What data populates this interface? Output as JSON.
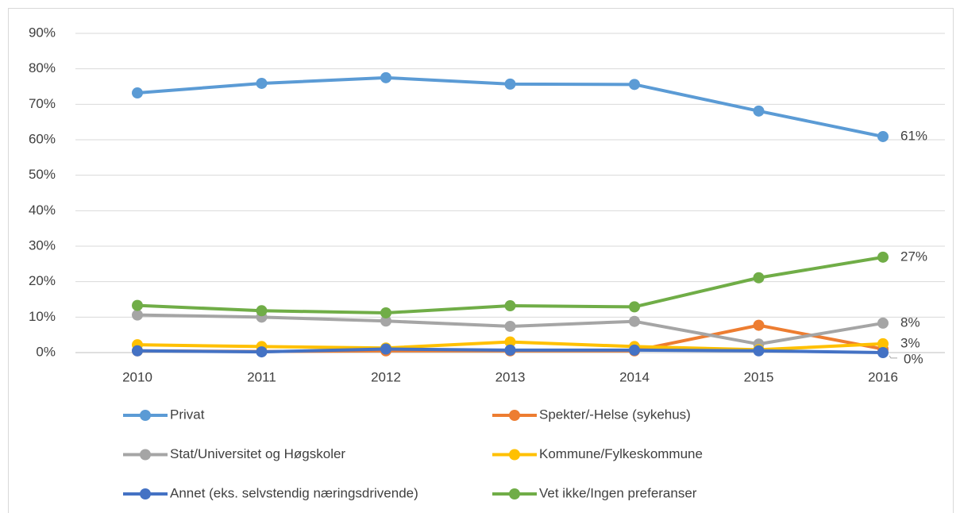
{
  "chart_data": {
    "type": "line",
    "categories": [
      "2010",
      "2011",
      "2012",
      "2013",
      "2014",
      "2015",
      "2016"
    ],
    "series": [
      {
        "name": "Privat",
        "color": "#5b9bd5",
        "values": [
          73.2,
          75.9,
          77.5,
          75.7,
          75.6,
          68.1,
          60.9
        ],
        "value_labels": [
          null,
          null,
          null,
          null,
          null,
          null,
          "61%"
        ]
      },
      {
        "name": "Spekter/-Helse (sykehus)",
        "color": "#ed7d31",
        "values": [
          0.5,
          0.3,
          0.5,
          0.5,
          0.5,
          7.7,
          1.0
        ]
      },
      {
        "name": "Stat/Universitet og Høgskoler",
        "color": "#a5a5a5",
        "values": [
          10.6,
          10.0,
          8.9,
          7.4,
          8.8,
          2.4,
          8.3
        ],
        "value_labels": [
          null,
          null,
          null,
          null,
          null,
          null,
          "8%"
        ]
      },
      {
        "name": "Kommune/Fylkeskommune",
        "color": "#ffc000",
        "values": [
          2.2,
          1.7,
          1.3,
          3.0,
          1.7,
          0.8,
          2.5
        ],
        "value_labels": [
          null,
          null,
          null,
          null,
          null,
          null,
          "3%"
        ]
      },
      {
        "name": "Annet (eks. selvstendig næringsdrivende)",
        "color": "#4472c4",
        "values": [
          0.5,
          0.2,
          1.0,
          0.7,
          0.7,
          0.5,
          0.0
        ],
        "value_labels": [
          null,
          null,
          null,
          null,
          null,
          null,
          "0%"
        ]
      },
      {
        "name": "Vet ikke/Ingen preferanser",
        "color": "#70ad47",
        "values": [
          13.3,
          11.8,
          11.2,
          13.2,
          12.9,
          21.1,
          26.9
        ],
        "value_labels": [
          null,
          null,
          null,
          null,
          null,
          null,
          "27%"
        ]
      }
    ],
    "ylim": [
      0,
      90
    ],
    "yticks": [
      {
        "value": 0,
        "label": "0%"
      },
      {
        "value": 10,
        "label": "10%"
      },
      {
        "value": 20,
        "label": "20%"
      },
      {
        "value": 30,
        "label": "30%"
      },
      {
        "value": 40,
        "label": "40%"
      },
      {
        "value": 50,
        "label": "50%"
      },
      {
        "value": 60,
        "label": "60%"
      },
      {
        "value": 70,
        "label": "70%"
      },
      {
        "value": 80,
        "label": "80%"
      },
      {
        "value": 90,
        "label": "90%"
      }
    ],
    "grid": true,
    "legend": "bottom"
  }
}
